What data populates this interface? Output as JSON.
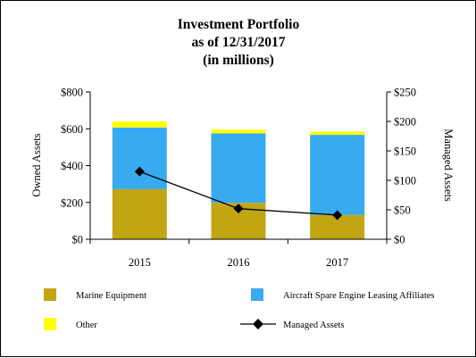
{
  "chart_data": {
    "type": "bar",
    "title": [
      "Investment Portfolio",
      "as of 12/31/2017",
      "(in millions)"
    ],
    "categories": [
      "2015",
      "2016",
      "2017"
    ],
    "stacked": true,
    "ylabel_left": "Owned Assets",
    "ylabel_right": "Managed Assets",
    "y_left_lim": [
      0,
      800
    ],
    "y_left_ticks": [
      "$0",
      "$200",
      "$400",
      "$600",
      "$800"
    ],
    "y_left_tick_values": [
      0,
      200,
      400,
      600,
      800
    ],
    "y_right_lim": [
      0,
      250
    ],
    "y_right_ticks": [
      "$0",
      "$50",
      "$100",
      "$150",
      "$200",
      "$250"
    ],
    "y_right_tick_values": [
      0,
      50,
      100,
      150,
      200,
      250
    ],
    "series": [
      {
        "name": "Marine Equipment",
        "kind": "bar",
        "axis": "left",
        "color": "#c2a513",
        "values": [
          272,
          198,
          132
        ]
      },
      {
        "name": "Aircraft Spare Engine Leasing Affiliates",
        "kind": "bar",
        "axis": "left",
        "color": "#38aaf0",
        "values": [
          335,
          377,
          435
        ]
      },
      {
        "name": "Other",
        "kind": "bar",
        "axis": "left",
        "color": "#ffff00",
        "values": [
          33,
          20,
          18
        ]
      },
      {
        "name": "Managed Assets",
        "kind": "line",
        "axis": "right",
        "color": "#000000",
        "marker": "diamond",
        "values": [
          115,
          52,
          41
        ]
      }
    ],
    "grid": false,
    "legend_position": "bottom"
  }
}
